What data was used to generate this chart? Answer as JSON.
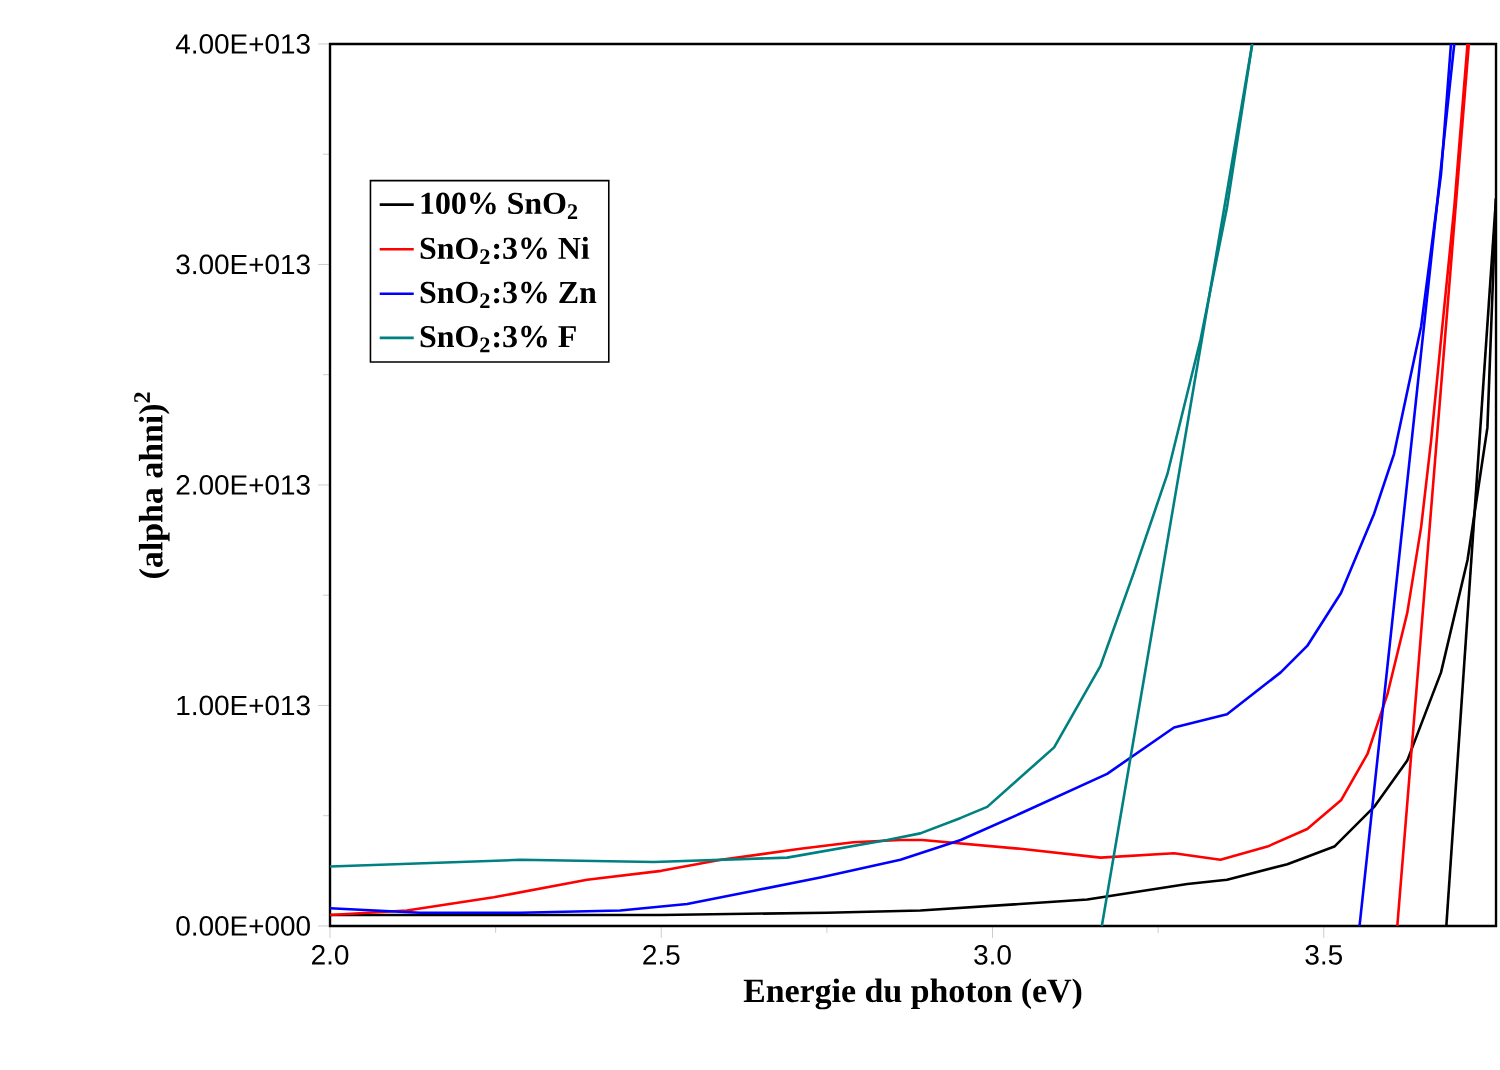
{
  "chart_data": {
    "type": "line",
    "xlabel": "Energie du photon (eV)",
    "ylabel": "(alpha ahni)$^{2}$",
    "xlim": [
      2.0,
      3.76
    ],
    "ylim": [
      0,
      40000000000000.0
    ],
    "xticks": [
      {
        "value": 2.0,
        "label": "2.0"
      },
      {
        "value": 2.5,
        "label": "2.5"
      },
      {
        "value": 3.0,
        "label": "3.0"
      },
      {
        "value": 3.5,
        "label": "3.5"
      }
    ],
    "yticks": [
      {
        "value": 0,
        "label": "0.00E+000"
      },
      {
        "value": 10000000000000.0,
        "label": "1.00E+013"
      },
      {
        "value": 20000000000000.0,
        "label": "2.00E+013"
      },
      {
        "value": 30000000000000.0,
        "label": "3.00E+013"
      },
      {
        "value": 40000000000000.0,
        "label": "4.00E+013"
      }
    ],
    "legend": "top left",
    "marker": "none",
    "line_style": "solid",
    "series": [
      {
        "name": "100% SnO$_{2}$",
        "color": "#000000",
        "x": [
          2.0,
          2.5,
          2.75,
          2.891,
          3.143,
          3.294,
          3.354,
          3.445,
          3.516,
          3.576,
          3.626,
          3.677,
          3.717,
          3.747,
          3.76
        ],
        "values": [
          500000000000.0,
          500000000000.0,
          600000000000.0,
          700000000000.0,
          1200000000000.0,
          1900000000000.0,
          2100000000000.0,
          2800000000000.0,
          3600000000000.0,
          5400000000000.0,
          7500000000000.0,
          11500000000000.0,
          16600000000000.0,
          22600000000000.0,
          33000000000000.0
        ]
      },
      {
        "name": "SnO$_{2}$:3% Ni",
        "color": "#ff0000",
        "x": [
          2.0,
          2.116,
          2.247,
          2.388,
          2.5,
          2.59,
          2.71,
          2.79,
          2.861,
          2.894,
          3.042,
          3.163,
          3.274,
          3.344,
          3.415,
          3.475,
          3.526,
          3.566,
          3.596,
          3.626,
          3.647,
          3.662,
          3.677,
          3.697,
          3.717
        ],
        "values": [
          500000000000.0,
          700000000000.0,
          1300000000000.0,
          2100000000000.0,
          2500000000000.0,
          3000000000000.0,
          3500000000000.0,
          3800000000000.0,
          3900000000000.0,
          3900000000000.0,
          3500000000000.0,
          3100000000000.0,
          3300000000000.0,
          3000000000000.0,
          3600000000000.0,
          4400000000000.0,
          5700000000000.0,
          7800000000000.0,
          10500000000000.0,
          14200000000000.0,
          18100000000000.0,
          22000000000000.0,
          26600000000000.0,
          32600000000000.0,
          40000000000000.0
        ]
      },
      {
        "name": "SnO$_{2}$:3% Zn",
        "color": "#0000ff",
        "x": [
          2.0,
          2.136,
          2.287,
          2.438,
          2.539,
          2.64,
          2.74,
          2.861,
          2.952,
          3.042,
          3.173,
          3.274,
          3.354,
          3.435,
          3.475,
          3.526,
          3.576,
          3.606,
          3.647,
          3.677,
          3.692
        ],
        "values": [
          800000000000.0,
          600000000000.0,
          600000000000.0,
          700000000000.0,
          1000000000000.0,
          1600000000000.0,
          2200000000000.0,
          3000000000000.0,
          3900000000000.0,
          5100000000000.0,
          6900000000000.0,
          9000000000000.0,
          9600000000000.0,
          11500000000000.0,
          12700000000000.0,
          15100000000000.0,
          18700000000000.0,
          21400000000000.0,
          27200000000000.0,
          34100000000000.0,
          40000000000000.0
        ]
      },
      {
        "name": "SnO$_{2}$:3% F",
        "color": "#008080",
        "x": [
          2.0,
          2.287,
          2.489,
          2.69,
          2.841,
          2.891,
          2.952,
          2.992,
          3.093,
          3.163,
          3.213,
          3.264,
          3.314,
          3.354,
          3.392
        ],
        "values": [
          2700000000000.0,
          3000000000000.0,
          2900000000000.0,
          3100000000000.0,
          3900000000000.0,
          4200000000000.0,
          4900000000000.0,
          5400000000000.0,
          8100000000000.0,
          11800000000000.0,
          16000000000000.0,
          20500000000000.0,
          26600000000000.0,
          32600000000000.0,
          40000000000000.0
        ]
      },
      {
        "color": "#000000",
        "x": [
          3.76,
          3.685
        ],
        "values": [
          33000000000000.0,
          0
        ]
      },
      {
        "color": "#ff0000",
        "x": [
          3.719,
          3.611
        ],
        "values": [
          40000000000000.0,
          0
        ]
      },
      {
        "color": "#0000ff",
        "x": [
          3.697,
          3.554
        ],
        "values": [
          40000000000000.0,
          0
        ]
      },
      {
        "color": "#008080",
        "x": [
          3.392,
          3.165
        ],
        "values": [
          40000000000000.0,
          0
        ]
      }
    ]
  }
}
